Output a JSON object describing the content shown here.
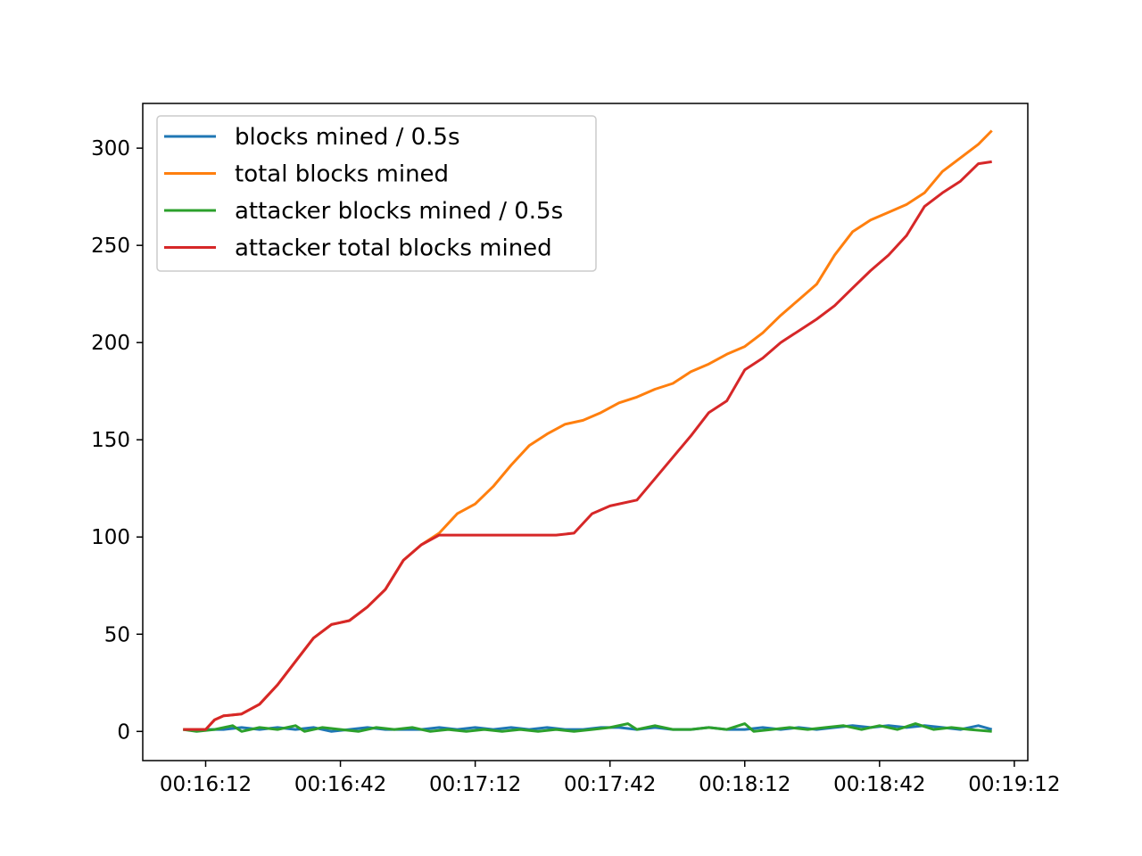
{
  "chart_data": {
    "type": "line",
    "title": "",
    "xlabel": "",
    "ylabel": "",
    "x_type": "time",
    "xlim": [
      "00:15:58",
      "00:19:15"
    ],
    "ylim": [
      -15,
      323
    ],
    "x_ticks": [
      "00:16:12",
      "00:16:42",
      "00:17:12",
      "00:17:42",
      "00:18:12",
      "00:18:42",
      "00:19:12"
    ],
    "y_ticks": [
      0,
      50,
      100,
      150,
      200,
      250,
      300
    ],
    "grid": false,
    "legend_position": "top-left",
    "series": [
      {
        "name": "blocks mined / 0.5s",
        "color": "#1f77b4",
        "points": [
          [
            "00:16:07",
            1
          ],
          [
            "00:16:12",
            1
          ],
          [
            "00:16:16",
            1
          ],
          [
            "00:16:20",
            2
          ],
          [
            "00:16:24",
            1
          ],
          [
            "00:16:28",
            2
          ],
          [
            "00:16:32",
            1
          ],
          [
            "00:16:36",
            2
          ],
          [
            "00:16:40",
            0
          ],
          [
            "00:16:44",
            1
          ],
          [
            "00:16:48",
            2
          ],
          [
            "00:16:52",
            1
          ],
          [
            "00:16:56",
            1
          ],
          [
            "00:17:00",
            1
          ],
          [
            "00:17:04",
            2
          ],
          [
            "00:17:08",
            1
          ],
          [
            "00:17:12",
            2
          ],
          [
            "00:17:16",
            1
          ],
          [
            "00:17:20",
            2
          ],
          [
            "00:17:24",
            1
          ],
          [
            "00:17:28",
            2
          ],
          [
            "00:17:32",
            1
          ],
          [
            "00:17:36",
            1
          ],
          [
            "00:17:40",
            2
          ],
          [
            "00:17:44",
            2
          ],
          [
            "00:17:48",
            1
          ],
          [
            "00:17:52",
            2
          ],
          [
            "00:17:56",
            1
          ],
          [
            "00:18:00",
            1
          ],
          [
            "00:18:04",
            2
          ],
          [
            "00:18:08",
            1
          ],
          [
            "00:18:12",
            1
          ],
          [
            "00:18:16",
            2
          ],
          [
            "00:18:20",
            1
          ],
          [
            "00:18:24",
            2
          ],
          [
            "00:18:28",
            1
          ],
          [
            "00:18:32",
            2
          ],
          [
            "00:18:36",
            3
          ],
          [
            "00:18:40",
            2
          ],
          [
            "00:18:44",
            3
          ],
          [
            "00:18:48",
            2
          ],
          [
            "00:18:52",
            3
          ],
          [
            "00:18:56",
            2
          ],
          [
            "00:19:00",
            1
          ],
          [
            "00:19:04",
            3
          ],
          [
            "00:19:07",
            1
          ]
        ]
      },
      {
        "name": "total blocks mined",
        "color": "#ff7f0e",
        "points": [
          [
            "00:16:07",
            1
          ],
          [
            "00:16:12",
            1
          ],
          [
            "00:16:14",
            6
          ],
          [
            "00:16:16",
            8
          ],
          [
            "00:16:20",
            9
          ],
          [
            "00:16:24",
            14
          ],
          [
            "00:16:28",
            24
          ],
          [
            "00:16:32",
            36
          ],
          [
            "00:16:36",
            48
          ],
          [
            "00:16:40",
            55
          ],
          [
            "00:16:44",
            57
          ],
          [
            "00:16:48",
            64
          ],
          [
            "00:16:52",
            73
          ],
          [
            "00:16:56",
            88
          ],
          [
            "00:17:00",
            96
          ],
          [
            "00:17:04",
            102
          ],
          [
            "00:17:08",
            112
          ],
          [
            "00:17:12",
            117
          ],
          [
            "00:17:16",
            126
          ],
          [
            "00:17:20",
            137
          ],
          [
            "00:17:24",
            147
          ],
          [
            "00:17:28",
            153
          ],
          [
            "00:17:32",
            158
          ],
          [
            "00:17:36",
            160
          ],
          [
            "00:17:40",
            164
          ],
          [
            "00:17:44",
            169
          ],
          [
            "00:17:48",
            172
          ],
          [
            "00:17:52",
            176
          ],
          [
            "00:17:56",
            179
          ],
          [
            "00:18:00",
            185
          ],
          [
            "00:18:04",
            189
          ],
          [
            "00:18:08",
            194
          ],
          [
            "00:18:12",
            198
          ],
          [
            "00:18:16",
            205
          ],
          [
            "00:18:20",
            214
          ],
          [
            "00:18:24",
            222
          ],
          [
            "00:18:28",
            230
          ],
          [
            "00:18:32",
            245
          ],
          [
            "00:18:36",
            257
          ],
          [
            "00:18:40",
            263
          ],
          [
            "00:18:44",
            267
          ],
          [
            "00:18:48",
            271
          ],
          [
            "00:18:52",
            277
          ],
          [
            "00:18:56",
            288
          ],
          [
            "00:19:00",
            295
          ],
          [
            "00:19:04",
            302
          ],
          [
            "00:19:07",
            309
          ]
        ]
      },
      {
        "name": "attacker blocks mined / 0.5s",
        "color": "#2ca02c",
        "points": [
          [
            "00:16:07",
            1
          ],
          [
            "00:16:10",
            0
          ],
          [
            "00:16:14",
            1
          ],
          [
            "00:16:18",
            3
          ],
          [
            "00:16:20",
            0
          ],
          [
            "00:16:24",
            2
          ],
          [
            "00:16:28",
            1
          ],
          [
            "00:16:32",
            3
          ],
          [
            "00:16:34",
            0
          ],
          [
            "00:16:38",
            2
          ],
          [
            "00:16:42",
            1
          ],
          [
            "00:16:46",
            0
          ],
          [
            "00:16:50",
            2
          ],
          [
            "00:16:54",
            1
          ],
          [
            "00:16:58",
            2
          ],
          [
            "00:17:02",
            0
          ],
          [
            "00:17:06",
            1
          ],
          [
            "00:17:10",
            0
          ],
          [
            "00:17:14",
            1
          ],
          [
            "00:17:18",
            0
          ],
          [
            "00:17:22",
            1
          ],
          [
            "00:17:26",
            0
          ],
          [
            "00:17:30",
            1
          ],
          [
            "00:17:34",
            0
          ],
          [
            "00:17:38",
            1
          ],
          [
            "00:17:42",
            2
          ],
          [
            "00:17:46",
            4
          ],
          [
            "00:17:48",
            1
          ],
          [
            "00:17:52",
            3
          ],
          [
            "00:17:56",
            1
          ],
          [
            "00:18:00",
            1
          ],
          [
            "00:18:04",
            2
          ],
          [
            "00:18:08",
            1
          ],
          [
            "00:18:12",
            4
          ],
          [
            "00:18:14",
            0
          ],
          [
            "00:18:18",
            1
          ],
          [
            "00:18:22",
            2
          ],
          [
            "00:18:26",
            1
          ],
          [
            "00:18:30",
            2
          ],
          [
            "00:18:34",
            3
          ],
          [
            "00:18:38",
            1
          ],
          [
            "00:18:42",
            3
          ],
          [
            "00:18:46",
            1
          ],
          [
            "00:18:50",
            4
          ],
          [
            "00:18:54",
            1
          ],
          [
            "00:18:58",
            2
          ],
          [
            "00:19:02",
            1
          ],
          [
            "00:19:07",
            0
          ]
        ]
      },
      {
        "name": "attacker total blocks mined",
        "color": "#d62728",
        "points": [
          [
            "00:16:07",
            1
          ],
          [
            "00:16:12",
            1
          ],
          [
            "00:16:14",
            6
          ],
          [
            "00:16:16",
            8
          ],
          [
            "00:16:20",
            9
          ],
          [
            "00:16:24",
            14
          ],
          [
            "00:16:28",
            24
          ],
          [
            "00:16:32",
            36
          ],
          [
            "00:16:36",
            48
          ],
          [
            "00:16:40",
            55
          ],
          [
            "00:16:44",
            57
          ],
          [
            "00:16:48",
            64
          ],
          [
            "00:16:52",
            73
          ],
          [
            "00:16:56",
            88
          ],
          [
            "00:17:00",
            96
          ],
          [
            "00:17:04",
            101
          ],
          [
            "00:17:10",
            101
          ],
          [
            "00:17:20",
            101
          ],
          [
            "00:17:30",
            101
          ],
          [
            "00:17:34",
            102
          ],
          [
            "00:17:38",
            112
          ],
          [
            "00:17:42",
            116
          ],
          [
            "00:17:48",
            119
          ],
          [
            "00:17:52",
            130
          ],
          [
            "00:17:56",
            141
          ],
          [
            "00:18:00",
            152
          ],
          [
            "00:18:04",
            164
          ],
          [
            "00:18:08",
            170
          ],
          [
            "00:18:12",
            186
          ],
          [
            "00:18:16",
            192
          ],
          [
            "00:18:20",
            200
          ],
          [
            "00:18:24",
            206
          ],
          [
            "00:18:28",
            212
          ],
          [
            "00:18:32",
            219
          ],
          [
            "00:18:36",
            228
          ],
          [
            "00:18:40",
            237
          ],
          [
            "00:18:44",
            245
          ],
          [
            "00:18:48",
            255
          ],
          [
            "00:18:52",
            270
          ],
          [
            "00:18:56",
            277
          ],
          [
            "00:19:00",
            283
          ],
          [
            "00:19:04",
            292
          ],
          [
            "00:19:07",
            293
          ]
        ]
      }
    ]
  }
}
